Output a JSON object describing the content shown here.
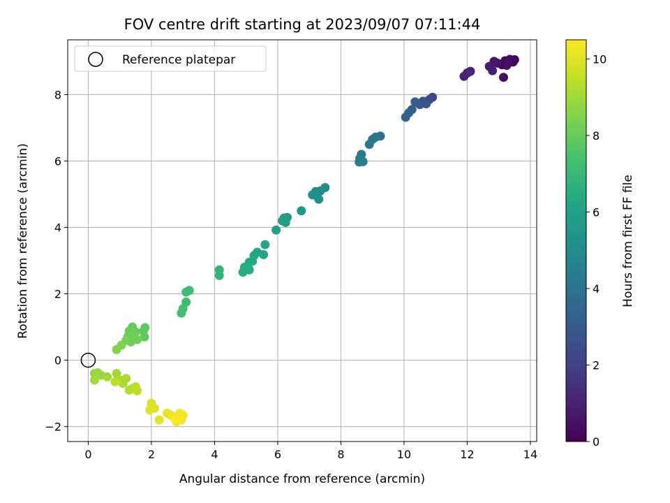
{
  "chart_data": {
    "type": "scatter",
    "title": "FOV centre drift starting at 2023/09/07 07:11:44",
    "xlabel": "Angular distance from reference (arcmin)",
    "ylabel": "Rotation from reference (arcmin)",
    "xlim": [
      -0.65,
      14.2
    ],
    "ylim": [
      -2.45,
      9.65
    ],
    "xticks": [
      0,
      2,
      4,
      6,
      8,
      10,
      12,
      14
    ],
    "yticks": [
      -2,
      0,
      2,
      4,
      6,
      8
    ],
    "grid": true,
    "legend": {
      "placement": "top-left",
      "entries": [
        "Reference platepar"
      ]
    },
    "reference_point": {
      "x": 0,
      "y": 0
    },
    "colorbar": {
      "label": "Hours from first FF file",
      "colormap": "viridis",
      "range": [
        0,
        10.5
      ],
      "ticks": [
        0,
        2,
        4,
        6,
        8,
        10
      ]
    },
    "series": [
      {
        "points": [
          {
            "x": 13.5,
            "y": 9.05,
            "t": 0.0
          },
          {
            "x": 13.4,
            "y": 9.0,
            "t": 0.05
          },
          {
            "x": 13.3,
            "y": 8.95,
            "t": 0.1
          },
          {
            "x": 13.45,
            "y": 8.98,
            "t": 0.15
          },
          {
            "x": 13.2,
            "y": 9.02,
            "t": 0.2
          },
          {
            "x": 13.1,
            "y": 8.9,
            "t": 0.25
          },
          {
            "x": 13.35,
            "y": 9.06,
            "t": 0.3
          },
          {
            "x": 13.25,
            "y": 8.88,
            "t": 0.35
          },
          {
            "x": 13.15,
            "y": 8.52,
            "t": 0.4
          },
          {
            "x": 13.3,
            "y": 8.98,
            "t": 0.45
          },
          {
            "x": 12.95,
            "y": 8.95,
            "t": 0.6
          },
          {
            "x": 12.85,
            "y": 9.0,
            "t": 0.7
          },
          {
            "x": 12.7,
            "y": 8.85,
            "t": 0.8
          },
          {
            "x": 12.8,
            "y": 8.72,
            "t": 0.9
          },
          {
            "x": 12.0,
            "y": 8.65,
            "t": 1.0
          },
          {
            "x": 11.9,
            "y": 8.55,
            "t": 1.05
          },
          {
            "x": 12.1,
            "y": 8.7,
            "t": 1.1
          },
          {
            "x": 10.9,
            "y": 7.92,
            "t": 2.2
          },
          {
            "x": 10.8,
            "y": 7.85,
            "t": 2.4
          },
          {
            "x": 10.6,
            "y": 7.8,
            "t": 2.6
          },
          {
            "x": 10.5,
            "y": 7.7,
            "t": 2.8
          },
          {
            "x": 10.35,
            "y": 7.78,
            "t": 3.0
          },
          {
            "x": 10.25,
            "y": 7.55,
            "t": 3.1
          },
          {
            "x": 10.15,
            "y": 7.45,
            "t": 3.2
          },
          {
            "x": 10.05,
            "y": 7.32,
            "t": 3.3
          },
          {
            "x": 10.7,
            "y": 7.72,
            "t": 2.7
          },
          {
            "x": 9.25,
            "y": 6.75,
            "t": 4.0
          },
          {
            "x": 9.1,
            "y": 6.72,
            "t": 4.05
          },
          {
            "x": 9.0,
            "y": 6.65,
            "t": 4.1
          },
          {
            "x": 8.9,
            "y": 6.5,
            "t": 4.15
          },
          {
            "x": 8.65,
            "y": 6.2,
            "t": 4.3
          },
          {
            "x": 8.6,
            "y": 6.08,
            "t": 4.35
          },
          {
            "x": 8.7,
            "y": 5.98,
            "t": 4.4
          },
          {
            "x": 8.58,
            "y": 5.97,
            "t": 4.45
          },
          {
            "x": 7.5,
            "y": 5.2,
            "t": 5.0
          },
          {
            "x": 7.35,
            "y": 5.1,
            "t": 5.05
          },
          {
            "x": 7.2,
            "y": 5.08,
            "t": 5.1
          },
          {
            "x": 7.1,
            "y": 4.98,
            "t": 5.15
          },
          {
            "x": 7.3,
            "y": 4.85,
            "t": 5.2
          },
          {
            "x": 6.75,
            "y": 4.5,
            "t": 5.5
          },
          {
            "x": 6.3,
            "y": 4.3,
            "t": 5.7
          },
          {
            "x": 6.2,
            "y": 4.28,
            "t": 5.75
          },
          {
            "x": 6.25,
            "y": 4.15,
            "t": 5.8
          },
          {
            "x": 6.15,
            "y": 4.2,
            "t": 5.85
          },
          {
            "x": 5.95,
            "y": 3.92,
            "t": 5.95
          },
          {
            "x": 5.6,
            "y": 3.48,
            "t": 6.1
          },
          {
            "x": 5.55,
            "y": 3.18,
            "t": 6.15
          },
          {
            "x": 5.35,
            "y": 3.25,
            "t": 6.2
          },
          {
            "x": 5.25,
            "y": 3.15,
            "t": 6.25
          },
          {
            "x": 5.1,
            "y": 2.95,
            "t": 6.3
          },
          {
            "x": 5.2,
            "y": 2.98,
            "t": 6.35
          },
          {
            "x": 5.05,
            "y": 2.82,
            "t": 6.4
          },
          {
            "x": 4.95,
            "y": 2.8,
            "t": 6.45
          },
          {
            "x": 5.1,
            "y": 2.72,
            "t": 6.5
          },
          {
            "x": 4.9,
            "y": 2.65,
            "t": 6.55
          },
          {
            "x": 4.15,
            "y": 2.72,
            "t": 6.8
          },
          {
            "x": 4.15,
            "y": 2.55,
            "t": 6.85
          },
          {
            "x": 3.2,
            "y": 2.1,
            "t": 7.1
          },
          {
            "x": 3.1,
            "y": 2.05,
            "t": 7.15
          },
          {
            "x": 3.1,
            "y": 1.75,
            "t": 7.2
          },
          {
            "x": 3.0,
            "y": 1.55,
            "t": 7.25
          },
          {
            "x": 2.95,
            "y": 1.42,
            "t": 7.3
          },
          {
            "x": 1.8,
            "y": 0.98,
            "t": 7.8
          },
          {
            "x": 1.75,
            "y": 0.88,
            "t": 7.85
          },
          {
            "x": 1.78,
            "y": 0.7,
            "t": 7.9
          },
          {
            "x": 1.4,
            "y": 1.0,
            "t": 8.0
          },
          {
            "x": 1.5,
            "y": 0.85,
            "t": 8.05
          },
          {
            "x": 1.3,
            "y": 0.88,
            "t": 8.1
          },
          {
            "x": 1.25,
            "y": 0.7,
            "t": 8.15
          },
          {
            "x": 1.45,
            "y": 0.68,
            "t": 8.2
          },
          {
            "x": 1.55,
            "y": 0.62,
            "t": 8.25
          },
          {
            "x": 1.35,
            "y": 0.55,
            "t": 8.3
          },
          {
            "x": 1.2,
            "y": 0.6,
            "t": 8.35
          },
          {
            "x": 1.05,
            "y": 0.45,
            "t": 8.45
          },
          {
            "x": 0.9,
            "y": 0.32,
            "t": 8.55
          },
          {
            "x": 0.2,
            "y": -0.4,
            "t": 8.8
          },
          {
            "x": 0.3,
            "y": -0.38,
            "t": 8.85
          },
          {
            "x": 0.4,
            "y": -0.45,
            "t": 8.9
          },
          {
            "x": 0.6,
            "y": -0.5,
            "t": 8.95
          },
          {
            "x": 0.2,
            "y": -0.6,
            "t": 9.0
          },
          {
            "x": 0.9,
            "y": -0.4,
            "t": 9.05
          },
          {
            "x": 1.0,
            "y": -0.6,
            "t": 9.1
          },
          {
            "x": 1.2,
            "y": -0.55,
            "t": 9.15
          },
          {
            "x": 1.1,
            "y": -0.7,
            "t": 9.2
          },
          {
            "x": 1.3,
            "y": -0.9,
            "t": 9.25
          },
          {
            "x": 1.4,
            "y": -0.85,
            "t": 9.3
          },
          {
            "x": 1.5,
            "y": -0.8,
            "t": 9.35
          },
          {
            "x": 1.55,
            "y": -0.92,
            "t": 9.4
          },
          {
            "x": 0.85,
            "y": -0.65,
            "t": 9.45
          },
          {
            "x": 2.0,
            "y": -1.3,
            "t": 9.9
          },
          {
            "x": 2.1,
            "y": -1.45,
            "t": 9.95
          },
          {
            "x": 1.95,
            "y": -1.5,
            "t": 10.0
          },
          {
            "x": 2.25,
            "y": -1.8,
            "t": 10.05
          },
          {
            "x": 2.5,
            "y": -1.6,
            "t": 10.1
          },
          {
            "x": 2.6,
            "y": -1.65,
            "t": 10.15
          },
          {
            "x": 2.7,
            "y": -1.7,
            "t": 10.2
          },
          {
            "x": 2.8,
            "y": -1.85,
            "t": 10.25
          },
          {
            "x": 2.9,
            "y": -1.6,
            "t": 10.3
          },
          {
            "x": 3.0,
            "y": -1.65,
            "t": 10.35
          },
          {
            "x": 2.95,
            "y": -1.8,
            "t": 10.4
          },
          {
            "x": 2.75,
            "y": -1.78,
            "t": 10.45
          }
        ]
      }
    ]
  }
}
